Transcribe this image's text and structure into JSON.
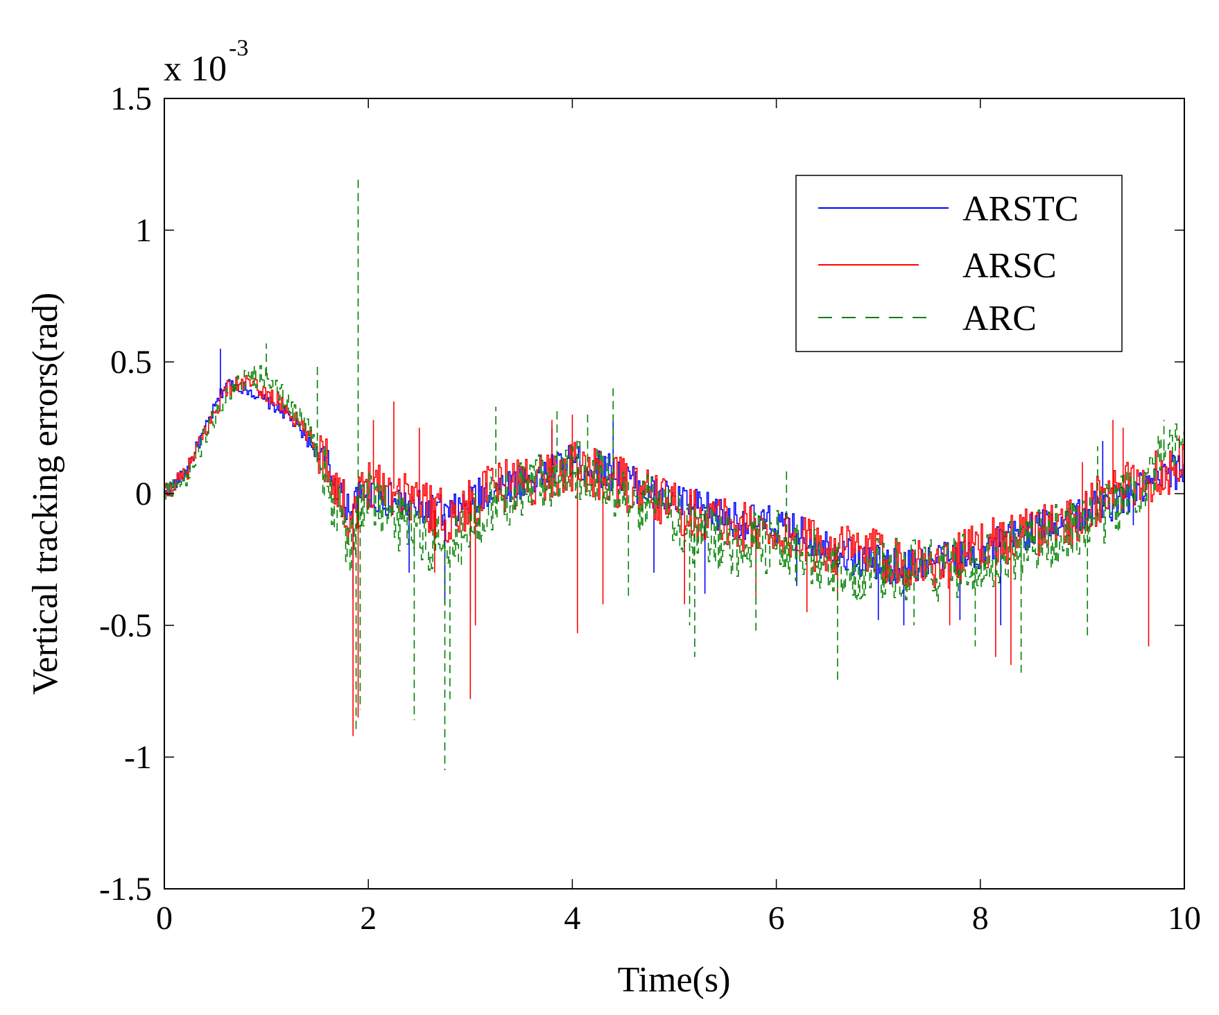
{
  "chart_data": {
    "type": "line",
    "title": "",
    "xlabel": "Time(s)",
    "ylabel": "Vertical tracking errors(rad)",
    "y_multiplier_label": "x 10",
    "y_multiplier_exponent": "-3",
    "xlim": [
      0,
      10
    ],
    "ylim": [
      -1.5,
      1.5
    ],
    "x_ticks": [
      0,
      2,
      4,
      6,
      8,
      10
    ],
    "y_ticks": [
      -1.5,
      -1,
      -0.5,
      0,
      0.5,
      1,
      1.5
    ],
    "x_tick_labels": [
      "0",
      "2",
      "4",
      "6",
      "8",
      "10"
    ],
    "y_tick_labels": [
      "-1.5",
      "-1",
      "-0.5",
      "0",
      "0.5",
      "1",
      "1.5"
    ],
    "grid": false,
    "legend_position": "top-right",
    "series": [
      {
        "name": "ARSTC",
        "color": "#0000ff",
        "dash": "solid",
        "x": [
          0,
          0.2,
          0.4,
          0.6,
          0.8,
          1.0,
          1.2,
          1.4,
          1.6,
          1.8,
          2.0,
          2.4,
          2.8,
          3.2,
          3.6,
          4.0,
          4.4,
          4.8,
          5.2,
          5.6,
          6.0,
          6.4,
          6.8,
          7.2,
          7.6,
          8.0,
          8.4,
          8.8,
          9.2,
          9.6,
          10.0
        ],
        "values": [
          0.0,
          0.08,
          0.25,
          0.42,
          0.4,
          0.35,
          0.3,
          0.2,
          0.1,
          -0.05,
          0.0,
          -0.05,
          -0.08,
          0.02,
          0.06,
          0.12,
          0.08,
          0.0,
          -0.05,
          -0.1,
          -0.12,
          -0.18,
          -0.25,
          -0.28,
          -0.25,
          -0.22,
          -0.15,
          -0.1,
          -0.05,
          0.02,
          0.1
        ],
        "spikes": [
          [
            0.55,
            0.55
          ],
          [
            1.85,
            -0.4
          ],
          [
            2.4,
            -0.3
          ],
          [
            2.75,
            -0.42
          ],
          [
            3.0,
            -0.45
          ],
          [
            3.8,
            0.25
          ],
          [
            4.4,
            0.28
          ],
          [
            4.8,
            -0.3
          ],
          [
            5.3,
            -0.38
          ],
          [
            6.2,
            -0.35
          ],
          [
            7.0,
            -0.48
          ],
          [
            7.25,
            -0.5
          ],
          [
            7.8,
            -0.48
          ],
          [
            8.2,
            -0.5
          ],
          [
            9.2,
            0.2
          ],
          [
            9.5,
            -0.12
          ],
          [
            10.0,
            0.18
          ]
        ]
      },
      {
        "name": "ARSC",
        "color": "#ff0000",
        "dash": "solid",
        "x": [
          0,
          0.2,
          0.4,
          0.6,
          0.8,
          1.0,
          1.2,
          1.4,
          1.6,
          1.8,
          2.0,
          2.4,
          2.8,
          3.2,
          3.6,
          4.0,
          4.4,
          4.8,
          5.2,
          5.6,
          6.0,
          6.4,
          6.8,
          7.2,
          7.6,
          8.0,
          8.4,
          8.8,
          9.2,
          9.6,
          10.0
        ],
        "values": [
          0.0,
          0.07,
          0.24,
          0.4,
          0.42,
          0.38,
          0.32,
          0.22,
          0.12,
          -0.1,
          0.05,
          0.0,
          -0.1,
          0.02,
          0.05,
          0.1,
          0.05,
          -0.02,
          -0.08,
          -0.12,
          -0.15,
          -0.2,
          -0.22,
          -0.25,
          -0.28,
          -0.2,
          -0.15,
          -0.12,
          -0.02,
          0.05,
          0.12
        ],
        "spikes": [
          [
            1.85,
            -0.92
          ],
          [
            1.9,
            -0.85
          ],
          [
            2.05,
            0.28
          ],
          [
            2.25,
            0.35
          ],
          [
            2.5,
            0.25
          ],
          [
            2.65,
            -0.3
          ],
          [
            3.0,
            -0.78
          ],
          [
            3.05,
            -0.5
          ],
          [
            3.8,
            0.28
          ],
          [
            4.0,
            0.3
          ],
          [
            4.05,
            -0.53
          ],
          [
            4.3,
            -0.42
          ],
          [
            5.1,
            -0.42
          ],
          [
            5.8,
            -0.4
          ],
          [
            6.3,
            -0.45
          ],
          [
            6.6,
            -0.4
          ],
          [
            7.7,
            -0.5
          ],
          [
            8.15,
            -0.62
          ],
          [
            8.3,
            -0.65
          ],
          [
            9.0,
            0.12
          ],
          [
            9.3,
            0.28
          ],
          [
            9.4,
            0.25
          ],
          [
            9.65,
            -0.58
          ],
          [
            9.95,
            0.22
          ]
        ]
      },
      {
        "name": "ARC",
        "color": "#008000",
        "dash": "dashed",
        "x": [
          0,
          0.2,
          0.4,
          0.6,
          0.8,
          1.0,
          1.2,
          1.4,
          1.6,
          1.8,
          2.0,
          2.4,
          2.8,
          3.2,
          3.6,
          4.0,
          4.4,
          4.8,
          5.2,
          5.6,
          6.0,
          6.4,
          6.8,
          7.2,
          7.6,
          8.0,
          8.4,
          8.8,
          9.2,
          9.6,
          10.0
        ],
        "values": [
          0.0,
          0.06,
          0.22,
          0.38,
          0.44,
          0.45,
          0.35,
          0.25,
          0.05,
          -0.2,
          0.02,
          -0.15,
          -0.2,
          -0.05,
          0.05,
          0.1,
          0.02,
          -0.05,
          -0.15,
          -0.2,
          -0.18,
          -0.25,
          -0.3,
          -0.28,
          -0.3,
          -0.25,
          -0.2,
          -0.15,
          -0.08,
          0.05,
          0.2
        ],
        "spikes": [
          [
            1.0,
            0.57
          ],
          [
            1.5,
            0.5
          ],
          [
            1.9,
            1.2
          ],
          [
            1.88,
            -0.9
          ],
          [
            1.92,
            -0.82
          ],
          [
            2.45,
            -0.86
          ],
          [
            2.75,
            -1.05
          ],
          [
            2.8,
            -0.78
          ],
          [
            3.25,
            0.33
          ],
          [
            3.85,
            0.33
          ],
          [
            4.15,
            0.3
          ],
          [
            4.4,
            0.4
          ],
          [
            4.55,
            -0.4
          ],
          [
            5.15,
            -0.5
          ],
          [
            5.2,
            -0.62
          ],
          [
            5.8,
            -0.52
          ],
          [
            6.1,
            0.1
          ],
          [
            6.6,
            -0.72
          ],
          [
            7.35,
            -0.5
          ],
          [
            7.95,
            -0.58
          ],
          [
            8.4,
            -0.68
          ],
          [
            9.05,
            -0.55
          ],
          [
            9.15,
            0.18
          ],
          [
            9.8,
            0.28
          ]
        ]
      }
    ]
  }
}
